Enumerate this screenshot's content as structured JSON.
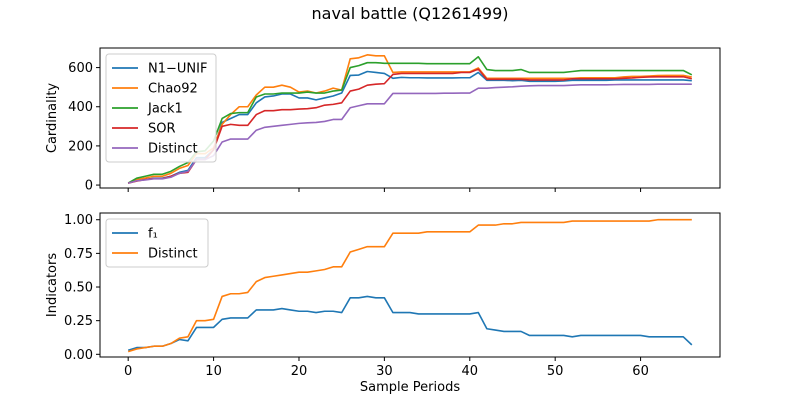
{
  "title": "naval battle (Q1261499)",
  "chart_data": [
    {
      "type": "line",
      "title": "naval battle (Q1261499)",
      "xlabel": "",
      "ylabel": "Cardinality",
      "xlim": [
        -3.3,
        69.3
      ],
      "ylim": [
        -15,
        700
      ],
      "yticks": [
        0,
        200,
        400,
        600
      ],
      "xticks": [
        0,
        10,
        20,
        30,
        40,
        50,
        60
      ],
      "legend": "upper-left",
      "grid": false,
      "x": [
        0,
        1,
        2,
        3,
        4,
        5,
        6,
        7,
        8,
        9,
        10,
        11,
        12,
        13,
        14,
        15,
        16,
        17,
        18,
        19,
        20,
        21,
        22,
        23,
        24,
        25,
        26,
        27,
        28,
        29,
        30,
        31,
        32,
        33,
        34,
        35,
        36,
        37,
        38,
        39,
        40,
        41,
        42,
        43,
        44,
        45,
        46,
        47,
        48,
        49,
        50,
        51,
        52,
        53,
        54,
        55,
        56,
        57,
        58,
        59,
        60,
        61,
        62,
        63,
        64,
        65,
        66
      ],
      "series": [
        {
          "name": "N1−UNIF",
          "color": "#1f77b4",
          "values": [
            10,
            22,
            28,
            35,
            35,
            45,
            65,
            75,
            140,
            140,
            180,
            320,
            340,
            360,
            360,
            420,
            450,
            455,
            465,
            465,
            445,
            445,
            435,
            445,
            455,
            470,
            560,
            562,
            580,
            575,
            570,
            545,
            550,
            548,
            548,
            547,
            547,
            547,
            547,
            548,
            548,
            575,
            535,
            535,
            535,
            533,
            535,
            530,
            530,
            530,
            530,
            532,
            535,
            535,
            535,
            535,
            535,
            537,
            537,
            537,
            537,
            537,
            537,
            537,
            537,
            537,
            533
          ]
        },
        {
          "name": "Chao92",
          "color": "#ff7f0e",
          "values": [
            10,
            28,
            36,
            45,
            45,
            60,
            85,
            100,
            160,
            160,
            190,
            310,
            360,
            400,
            400,
            460,
            500,
            500,
            510,
            500,
            475,
            480,
            470,
            480,
            495,
            485,
            645,
            650,
            665,
            660,
            660,
            575,
            578,
            578,
            578,
            578,
            578,
            578,
            578,
            578,
            578,
            598,
            545,
            545,
            545,
            545,
            545,
            545,
            545,
            545,
            545,
            545,
            545,
            548,
            548,
            548,
            548,
            548,
            552,
            555,
            555,
            557,
            559,
            560,
            560,
            560,
            552
          ]
        },
        {
          "name": "Jack1",
          "color": "#2ca02c",
          "values": [
            10,
            35,
            45,
            55,
            55,
            70,
            95,
            115,
            170,
            175,
            225,
            340,
            365,
            370,
            370,
            450,
            465,
            465,
            470,
            470,
            470,
            475,
            470,
            470,
            480,
            485,
            600,
            610,
            625,
            625,
            622,
            622,
            622,
            622,
            622,
            620,
            620,
            620,
            620,
            620,
            620,
            655,
            590,
            585,
            585,
            585,
            590,
            575,
            575,
            575,
            575,
            575,
            580,
            585,
            585,
            585,
            585,
            585,
            585,
            585,
            585,
            585,
            585,
            585,
            585,
            585,
            563
          ]
        },
        {
          "name": "SOR",
          "color": "#d62728",
          "values": [
            10,
            20,
            28,
            33,
            33,
            45,
            60,
            65,
            130,
            130,
            180,
            300,
            310,
            305,
            305,
            360,
            380,
            380,
            385,
            385,
            388,
            390,
            395,
            408,
            412,
            420,
            480,
            490,
            510,
            515,
            518,
            565,
            570,
            570,
            570,
            570,
            570,
            570,
            570,
            575,
            575,
            592,
            540,
            540,
            540,
            540,
            540,
            537,
            537,
            537,
            537,
            537,
            543,
            543,
            543,
            543,
            543,
            543,
            545,
            547,
            550,
            552,
            553,
            553,
            553,
            553,
            543
          ]
        },
        {
          "name": "Distinct",
          "color": "#9467bd",
          "values": [
            10,
            22,
            26,
            32,
            32,
            40,
            60,
            70,
            130,
            130,
            150,
            220,
            235,
            235,
            235,
            280,
            295,
            300,
            305,
            310,
            315,
            318,
            320,
            325,
            335,
            335,
            395,
            405,
            415,
            415,
            415,
            468,
            468,
            468,
            468,
            468,
            468,
            469,
            469,
            470,
            470,
            495,
            495,
            498,
            500,
            502,
            505,
            507,
            508,
            508,
            508,
            508,
            510,
            512,
            512,
            512,
            512,
            513,
            514,
            514,
            514,
            514,
            515,
            515,
            515,
            515,
            515
          ]
        }
      ]
    },
    {
      "type": "line",
      "title": "",
      "xlabel": "Sample Periods",
      "ylabel": "Indicators",
      "xlim": [
        -3.3,
        69.3
      ],
      "ylim": [
        -0.02,
        1.05
      ],
      "yticks": [
        "0.00",
        "0.25",
        "0.50",
        "0.75",
        "1.00"
      ],
      "xticks": [
        0,
        10,
        20,
        30,
        40,
        50,
        60
      ],
      "legend": "upper-left",
      "grid": false,
      "x": [
        0,
        1,
        2,
        3,
        4,
        5,
        6,
        7,
        8,
        9,
        10,
        11,
        12,
        13,
        14,
        15,
        16,
        17,
        18,
        19,
        20,
        21,
        22,
        23,
        24,
        25,
        26,
        27,
        28,
        29,
        30,
        31,
        32,
        33,
        34,
        35,
        36,
        37,
        38,
        39,
        40,
        41,
        42,
        43,
        44,
        45,
        46,
        47,
        48,
        49,
        50,
        51,
        52,
        53,
        54,
        55,
        56,
        57,
        58,
        59,
        60,
        61,
        62,
        63,
        64,
        65,
        66
      ],
      "series": [
        {
          "name": "f₁",
          "color": "#1f77b4",
          "values": [
            0.03,
            0.05,
            0.05,
            0.06,
            0.06,
            0.08,
            0.11,
            0.1,
            0.2,
            0.2,
            0.2,
            0.26,
            0.27,
            0.27,
            0.27,
            0.33,
            0.33,
            0.33,
            0.34,
            0.33,
            0.32,
            0.32,
            0.31,
            0.32,
            0.32,
            0.31,
            0.42,
            0.42,
            0.43,
            0.42,
            0.42,
            0.31,
            0.31,
            0.31,
            0.3,
            0.3,
            0.3,
            0.3,
            0.3,
            0.3,
            0.3,
            0.31,
            0.19,
            0.18,
            0.17,
            0.17,
            0.17,
            0.14,
            0.14,
            0.14,
            0.14,
            0.14,
            0.13,
            0.14,
            0.14,
            0.14,
            0.14,
            0.14,
            0.14,
            0.14,
            0.14,
            0.13,
            0.13,
            0.13,
            0.13,
            0.13,
            0.07
          ]
        },
        {
          "name": "Distinct",
          "color": "#ff7f0e",
          "values": [
            0.02,
            0.04,
            0.05,
            0.06,
            0.06,
            0.08,
            0.12,
            0.13,
            0.25,
            0.25,
            0.26,
            0.43,
            0.45,
            0.45,
            0.46,
            0.54,
            0.57,
            0.58,
            0.59,
            0.6,
            0.61,
            0.61,
            0.62,
            0.63,
            0.65,
            0.65,
            0.76,
            0.78,
            0.8,
            0.8,
            0.8,
            0.9,
            0.9,
            0.9,
            0.9,
            0.91,
            0.91,
            0.91,
            0.91,
            0.91,
            0.91,
            0.96,
            0.96,
            0.96,
            0.97,
            0.97,
            0.98,
            0.98,
            0.98,
            0.98,
            0.98,
            0.98,
            0.99,
            0.99,
            0.99,
            0.99,
            0.99,
            0.99,
            0.99,
            0.99,
            0.99,
            0.99,
            1.0,
            1.0,
            1.0,
            1.0,
            1.0
          ]
        }
      ]
    }
  ]
}
